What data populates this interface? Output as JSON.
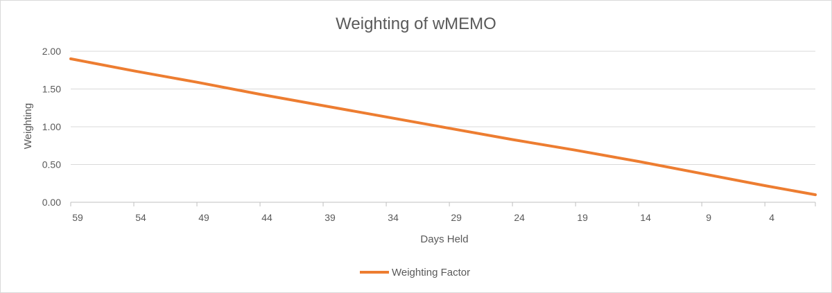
{
  "chart_data": {
    "type": "line",
    "title": "Weighting of wMEMO",
    "xlabel": "Days Held",
    "ylabel": "Weighting",
    "x_reversed": true,
    "xlim": [
      59,
      0
    ],
    "x_tick_labels": [
      "59",
      "54",
      "49",
      "44",
      "39",
      "34",
      "29",
      "24",
      "19",
      "14",
      "9",
      "4"
    ],
    "ylim": [
      0,
      2
    ],
    "y_tick_labels": [
      "0.00",
      "0.50",
      "1.00",
      "1.50",
      "2.00"
    ],
    "y_ticks": [
      0,
      0.5,
      1,
      1.5,
      2
    ],
    "grid": "horizontal",
    "legend_position": "bottom",
    "color": "#ed7d31",
    "series": [
      {
        "name": "Weighting Factor",
        "x": [
          59,
          54,
          49,
          44,
          39,
          34,
          29,
          24,
          19,
          14,
          9,
          4,
          0
        ],
        "values": [
          1.9,
          1.74,
          1.59,
          1.43,
          1.28,
          1.13,
          0.98,
          0.83,
          0.69,
          0.54,
          0.38,
          0.22,
          0.1
        ]
      }
    ]
  }
}
